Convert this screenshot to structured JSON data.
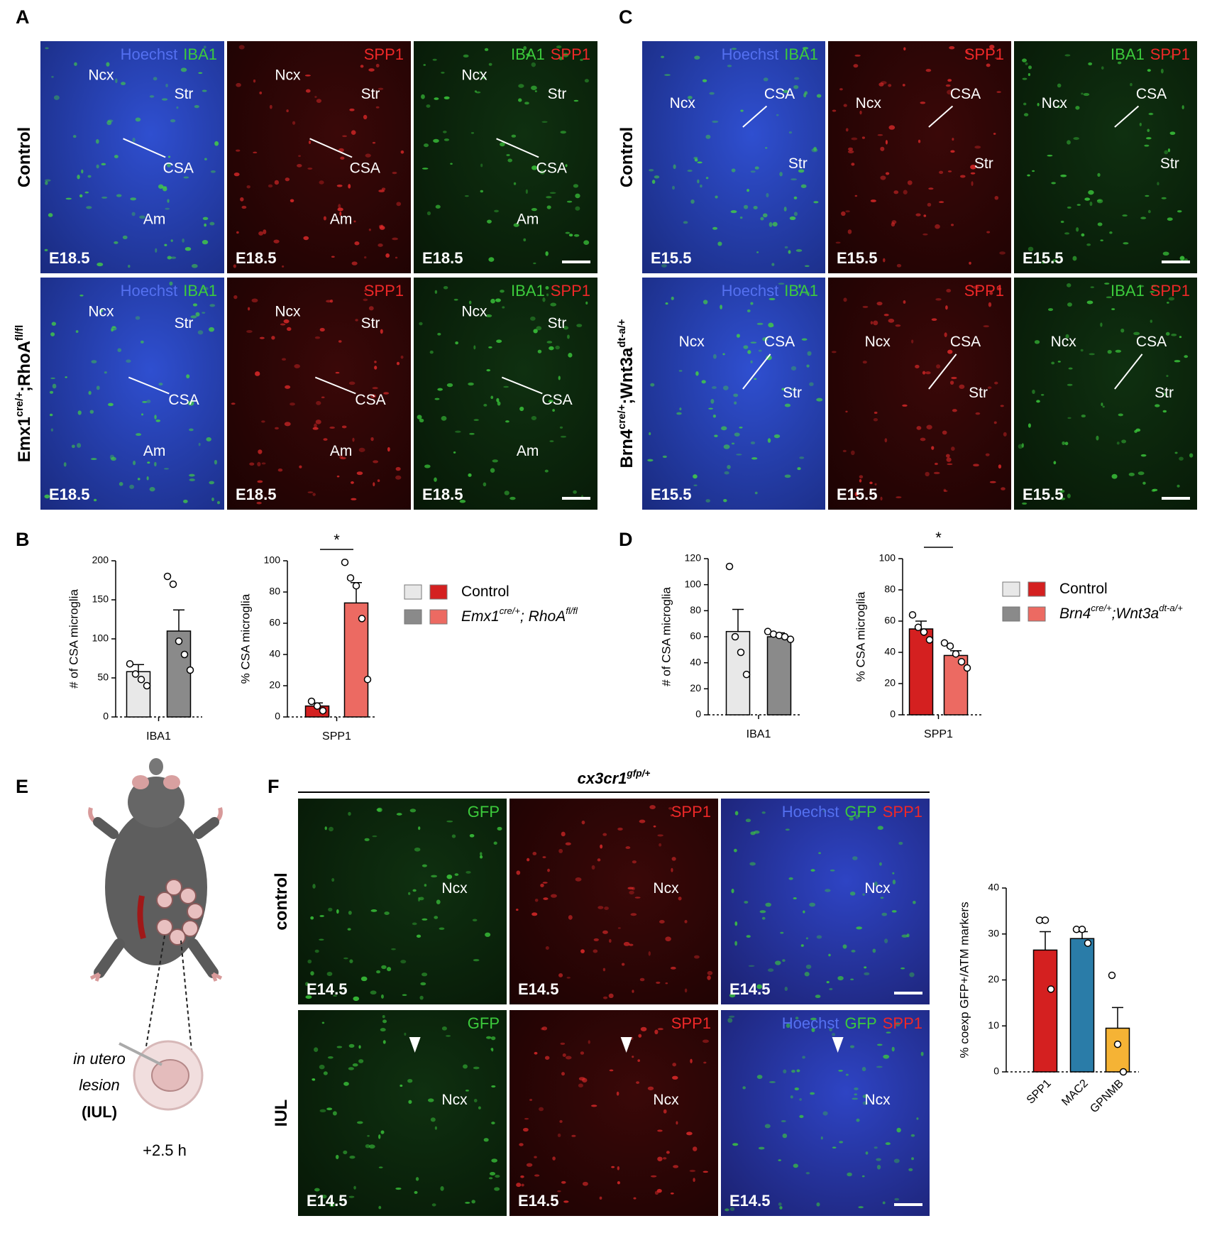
{
  "letters": [
    "A",
    "B",
    "C",
    "D",
    "E",
    "F"
  ],
  "A": {
    "rows": [
      {
        "label": [
          {
            "t": "Control"
          }
        ],
        "tiles": [
          {
            "channels": [
              {
                "text": "Hoechst",
                "color": "#5470f0"
              },
              {
                "text": "IBA1",
                "color": "#3ccb3c"
              }
            ],
            "regions": [
              "Ncx",
              "Str",
              "CSA",
              "Am"
            ],
            "stage": "E18.5"
          },
          {
            "channels": [
              {
                "text": "SPP1",
                "color": "#ee2828"
              }
            ],
            "regions": [
              "Ncx",
              "Str",
              "CSA",
              "Am"
            ],
            "stage": "E18.5"
          },
          {
            "channels": [
              {
                "text": "IBA1",
                "color": "#3ccb3c"
              },
              {
                "text": "SPP1",
                "color": "#ee2828"
              }
            ],
            "regions": [
              "Ncx",
              "Str",
              "CSA",
              "Am"
            ],
            "stage": "E18.5"
          }
        ]
      },
      {
        "label": [
          {
            "t": "Emx1"
          },
          {
            "t": "cre/+",
            "sup": true
          },
          {
            "t": ";RhoA"
          },
          {
            "t": "fl/fl",
            "sup": true
          }
        ],
        "tiles": [
          {
            "channels": [
              {
                "text": "Hoechst",
                "color": "#5470f0"
              },
              {
                "text": "IBA1",
                "color": "#3ccb3c"
              }
            ],
            "regions": [
              "Ncx",
              "Str",
              "CSA",
              "Am"
            ],
            "stage": "E18.5"
          },
          {
            "channels": [
              {
                "text": "SPP1",
                "color": "#ee2828"
              }
            ],
            "regions": [
              "Ncx",
              "Str",
              "CSA",
              "Am"
            ],
            "stage": "E18.5"
          },
          {
            "channels": [
              {
                "text": "IBA1",
                "color": "#3ccb3c"
              },
              {
                "text": "SPP1",
                "color": "#ee2828"
              }
            ],
            "regions": [
              "Ncx",
              "Str",
              "CSA",
              "Am"
            ],
            "stage": "E18.5"
          }
        ]
      }
    ]
  },
  "C": {
    "rows": [
      {
        "label": [
          {
            "t": "Control"
          }
        ],
        "tiles": [
          {
            "channels": [
              {
                "text": "Hoechst",
                "color": "#5470f0"
              },
              {
                "text": "IBA1",
                "color": "#3ccb3c"
              }
            ],
            "regions": [
              "Ncx",
              "CSA",
              "Str"
            ],
            "stage": "E15.5"
          },
          {
            "channels": [
              {
                "text": "SPP1",
                "color": "#ee2828"
              }
            ],
            "regions": [
              "Ncx",
              "CSA",
              "Str"
            ],
            "stage": "E15.5"
          },
          {
            "channels": [
              {
                "text": "IBA1",
                "color": "#3ccb3c"
              },
              {
                "text": "SPP1",
                "color": "#ee2828"
              }
            ],
            "regions": [
              "Ncx",
              "CSA",
              "Str"
            ],
            "stage": "E15.5"
          }
        ]
      },
      {
        "label": [
          {
            "t": "Brn4"
          },
          {
            "t": "cre/+",
            "sup": true
          },
          {
            "t": ";Wnt3a"
          },
          {
            "t": "dt-a/+",
            "sup": true
          }
        ],
        "tiles": [
          {
            "channels": [
              {
                "text": "Hoechst",
                "color": "#5470f0"
              },
              {
                "text": "IBA1",
                "color": "#3ccb3c"
              }
            ],
            "regions": [
              "Ncx",
              "CSA",
              "Str"
            ],
            "stage": "E15.5"
          },
          {
            "channels": [
              {
                "text": "SPP1",
                "color": "#ee2828"
              }
            ],
            "regions": [
              "Ncx",
              "CSA",
              "Str"
            ],
            "stage": "E15.5"
          },
          {
            "channels": [
              {
                "text": "IBA1",
                "color": "#3ccb3c"
              },
              {
                "text": "SPP1",
                "color": "#ee2828"
              }
            ],
            "regions": [
              "Ncx",
              "CSA",
              "Str"
            ],
            "stage": "E15.5"
          }
        ]
      }
    ]
  },
  "F": {
    "title": [
      {
        "t": "cx3cr1"
      },
      {
        "t": "gfp/+",
        "sup": true
      }
    ],
    "rows": [
      {
        "label": [
          {
            "t": "control"
          }
        ],
        "tiles": [
          {
            "channels": [
              {
                "text": "GFP",
                "color": "#3ccb3c"
              }
            ],
            "regions": [
              "Ncx"
            ],
            "stage": "E14.5"
          },
          {
            "channels": [
              {
                "text": "SPP1",
                "color": "#ee2828"
              }
            ],
            "regions": [
              "Ncx"
            ],
            "stage": "E14.5"
          },
          {
            "channels": [
              {
                "text": "Hoechst",
                "color": "#5470f0"
              },
              {
                "text": "GFP",
                "color": "#3ccb3c"
              },
              {
                "text": "SPP1",
                "color": "#ee2828"
              }
            ],
            "regions": [
              "Ncx"
            ],
            "stage": "E14.5"
          }
        ]
      },
      {
        "label": [
          {
            "t": "IUL"
          }
        ],
        "tiles": [
          {
            "channels": [
              {
                "text": "GFP",
                "color": "#3ccb3c"
              }
            ],
            "regions": [
              "Ncx"
            ],
            "stage": "E14.5"
          },
          {
            "channels": [
              {
                "text": "SPP1",
                "color": "#ee2828"
              }
            ],
            "regions": [
              "Ncx"
            ],
            "stage": "E14.5"
          },
          {
            "channels": [
              {
                "text": "Hoechst",
                "color": "#5470f0"
              },
              {
                "text": "GFP",
                "color": "#3ccb3c"
              },
              {
                "text": "SPP1",
                "color": "#ee2828"
              }
            ],
            "regions": [
              "Ncx"
            ],
            "stage": "E14.5"
          }
        ]
      }
    ]
  },
  "E": {
    "lines": [
      "in utero",
      "lesion",
      "(IUL)"
    ],
    "time": "+2.5 h"
  },
  "legend_B": [
    {
      "swatches": [
        "#e8e8e8",
        "#d42020"
      ],
      "name": [
        {
          "t": "Control"
        }
      ]
    },
    {
      "swatches": [
        "#8a8a8a",
        "#ec6a62"
      ],
      "name": [
        {
          "t": "Emx1",
          "i": true
        },
        {
          "t": "cre/+",
          "sup": true,
          "i": true
        },
        {
          "t": "; RhoA",
          "i": true
        },
        {
          "t": "fl/fl",
          "sup": true,
          "i": true
        }
      ]
    }
  ],
  "legend_D": [
    {
      "swatches": [
        "#e8e8e8",
        "#d42020"
      ],
      "name": [
        {
          "t": "Control"
        }
      ]
    },
    {
      "swatches": [
        "#8a8a8a",
        "#ec6a62"
      ],
      "name": [
        {
          "t": "Brn4",
          "i": true
        },
        {
          "t": "cre/+",
          "sup": true,
          "i": true
        },
        {
          "t": ";Wnt3a",
          "i": true
        },
        {
          "t": "dt-a/+",
          "sup": true,
          "i": true
        }
      ]
    }
  ],
  "chart_data": [
    {
      "type": "bar",
      "ylabel": "# of CSA microglia",
      "categories": [
        "IBA1"
      ],
      "ylim": [
        0,
        200
      ],
      "yticks": [
        0,
        50,
        100,
        150,
        200
      ],
      "series": [
        {
          "color": "#e8e8e8",
          "values": [
            58
          ],
          "errors": [
            9
          ],
          "points": [
            [
              68,
              55,
              48,
              40
            ]
          ]
        },
        {
          "color": "#8a8a8a",
          "values": [
            110
          ],
          "errors": [
            27
          ],
          "points": [
            [
              180,
              170,
              97,
              80,
              60
            ]
          ]
        }
      ]
    },
    {
      "type": "bar",
      "ylabel": "% CSA microglia",
      "categories": [
        "SPP1"
      ],
      "ylim": [
        0,
        100
      ],
      "yticks": [
        0,
        20,
        40,
        60,
        80,
        100
      ],
      "annotation": "*",
      "series": [
        {
          "color": "#d42020",
          "values": [
            7
          ],
          "errors": [
            2
          ],
          "points": [
            [
              10,
              7,
              4
            ]
          ]
        },
        {
          "color": "#ec6a62",
          "values": [
            73
          ],
          "errors": [
            13
          ],
          "points": [
            [
              99,
              89,
              84,
              63,
              24
            ]
          ]
        }
      ]
    },
    {
      "type": "bar",
      "ylabel": "# of CSA microglia",
      "categories": [
        "IBA1"
      ],
      "ylim": [
        0,
        120
      ],
      "yticks": [
        0,
        20,
        40,
        60,
        80,
        100,
        120
      ],
      "series": [
        {
          "color": "#e8e8e8",
          "values": [
            64
          ],
          "errors": [
            17
          ],
          "points": [
            [
              114,
              60,
              48,
              31
            ]
          ]
        },
        {
          "color": "#8a8a8a",
          "values": [
            60
          ],
          "errors": [
            3
          ],
          "points": [
            [
              64,
              62,
              61,
              60,
              58
            ]
          ]
        }
      ]
    },
    {
      "type": "bar",
      "ylabel": "% CSA microglia",
      "categories": [
        "SPP1"
      ],
      "ylim": [
        0,
        100
      ],
      "yticks": [
        0,
        20,
        40,
        60,
        80,
        100
      ],
      "annotation": "*",
      "series": [
        {
          "color": "#d42020",
          "values": [
            55
          ],
          "errors": [
            5
          ],
          "points": [
            [
              64,
              56,
              53,
              48
            ]
          ]
        },
        {
          "color": "#ec6a62",
          "values": [
            38
          ],
          "errors": [
            3
          ],
          "points": [
            [
              46,
              44,
              39,
              34,
              30
            ]
          ]
        }
      ]
    },
    {
      "type": "bar",
      "ylabel": "% coexp GFP+/ATM markers",
      "categories": [
        "SPP1",
        "MAC2",
        "GPNMB"
      ],
      "ylim": [
        0,
        40
      ],
      "yticks": [
        0,
        10,
        20,
        30,
        40
      ],
      "series": [
        {
          "colors": [
            "#d42020",
            "#2a7ca8",
            "#f5b335"
          ],
          "values": [
            26.5,
            29,
            9.5
          ],
          "errors": [
            4,
            1.5,
            4.5
          ],
          "points": [
            [
              33,
              33,
              18
            ],
            [
              31,
              31,
              28
            ],
            [
              21,
              6,
              0
            ]
          ]
        }
      ]
    }
  ]
}
